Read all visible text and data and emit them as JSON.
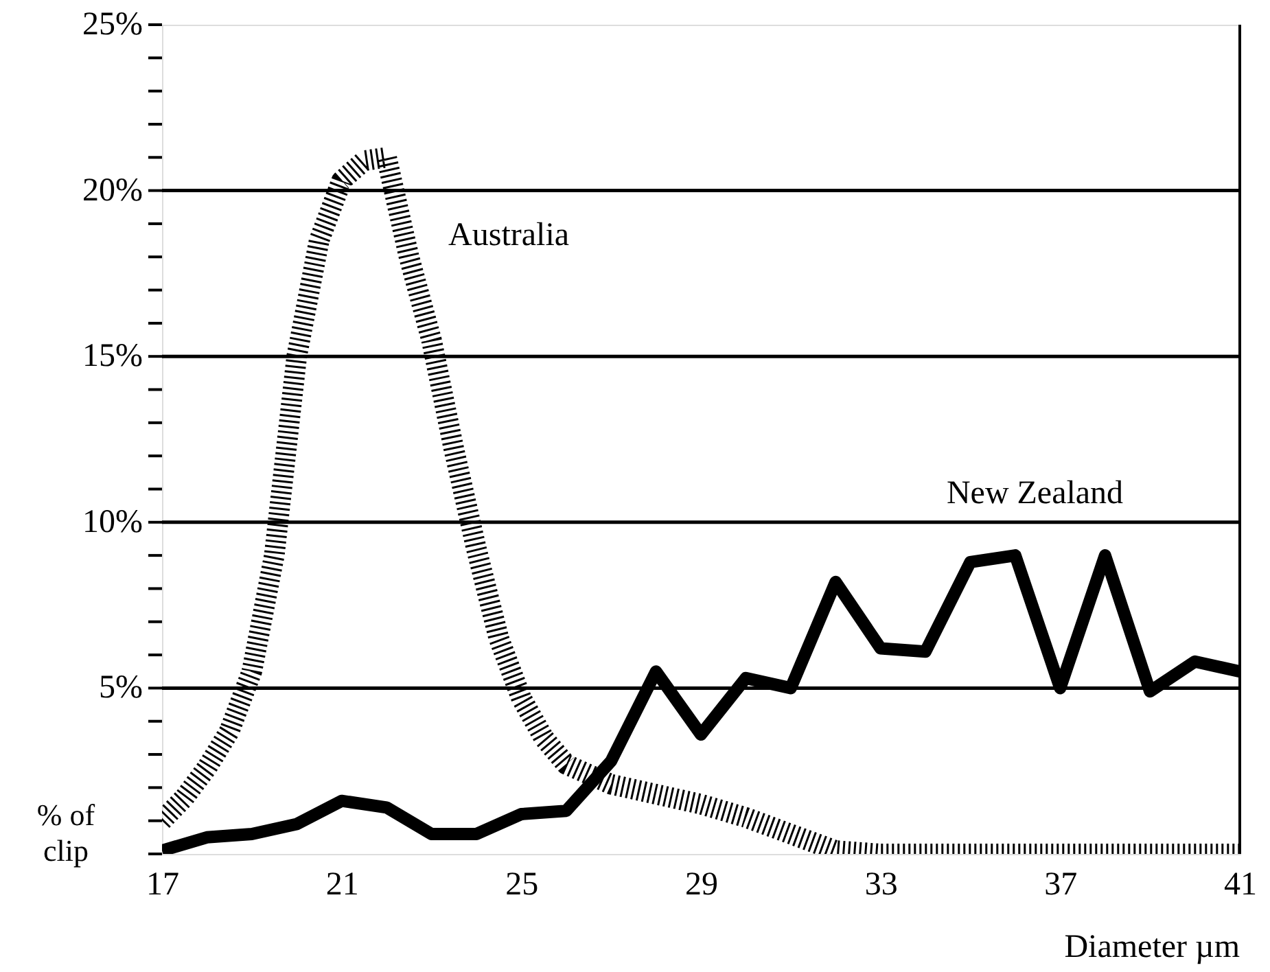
{
  "chart_data": {
    "type": "line",
    "xlabel": "Diameter µm",
    "ylabel": "% of clip",
    "xlim": [
      17,
      41
    ],
    "xticks": [
      17,
      21,
      25,
      29,
      33,
      37,
      41
    ],
    "ylim": [
      0,
      25
    ],
    "yticks": [
      {
        "value": 0,
        "label": null
      },
      {
        "value": 1,
        "label": null
      },
      {
        "value": 2,
        "label": null
      },
      {
        "value": 3,
        "label": null
      },
      {
        "value": 4,
        "label": null
      },
      {
        "value": 5,
        "label": "5%"
      },
      {
        "value": 6,
        "label": null
      },
      {
        "value": 7,
        "label": null
      },
      {
        "value": 8,
        "label": null
      },
      {
        "value": 9,
        "label": null
      },
      {
        "value": 10,
        "label": "10%"
      },
      {
        "value": 11,
        "label": null
      },
      {
        "value": 12,
        "label": null
      },
      {
        "value": 13,
        "label": null
      },
      {
        "value": 14,
        "label": null
      },
      {
        "value": 15,
        "label": "15%"
      },
      {
        "value": 16,
        "label": null
      },
      {
        "value": 17,
        "label": null
      },
      {
        "value": 18,
        "label": null
      },
      {
        "value": 19,
        "label": null
      },
      {
        "value": 20,
        "label": "20%"
      },
      {
        "value": 21,
        "label": null
      },
      {
        "value": 22,
        "label": null
      },
      {
        "value": 23,
        "label": null
      },
      {
        "value": 24,
        "label": null
      },
      {
        "value": 25,
        "label": "25%"
      }
    ],
    "grid": "y",
    "series": [
      {
        "name": "Australia",
        "color": "#000000",
        "line_style": "dotted",
        "x": [
          17,
          17.5,
          18,
          18.5,
          19,
          19.5,
          20,
          20.5,
          21,
          21.5,
          22,
          22.5,
          23,
          23.5,
          24,
          24.5,
          25,
          25.5,
          26,
          27,
          28,
          29,
          30,
          31,
          32,
          33,
          41
        ],
        "values": [
          1.0,
          1.7,
          2.6,
          3.7,
          5.5,
          9,
          15,
          18.5,
          20.3,
          20.9,
          21,
          18,
          15.5,
          12.2,
          9.2,
          6.5,
          4.7,
          3.5,
          2.7,
          2.1,
          1.8,
          1.5,
          1.1,
          0.6,
          0.1,
          0,
          0
        ]
      },
      {
        "name": "New Zealand",
        "color": "#000000",
        "line_style": "solid",
        "x": [
          17,
          18,
          19,
          20,
          21,
          22,
          23,
          24,
          25,
          26,
          27,
          28,
          29,
          30,
          31,
          32,
          33,
          34,
          35,
          36,
          37,
          38,
          39,
          40,
          41
        ],
        "values": [
          0.1,
          0.5,
          0.6,
          0.9,
          1.6,
          1.4,
          0.6,
          0.6,
          1.2,
          1.3,
          2.8,
          5.5,
          3.6,
          5.3,
          5.0,
          8.2,
          6.2,
          6.1,
          8.8,
          9.0,
          5.0,
          9.0,
          4.9,
          5.8,
          5.5
        ]
      }
    ]
  }
}
